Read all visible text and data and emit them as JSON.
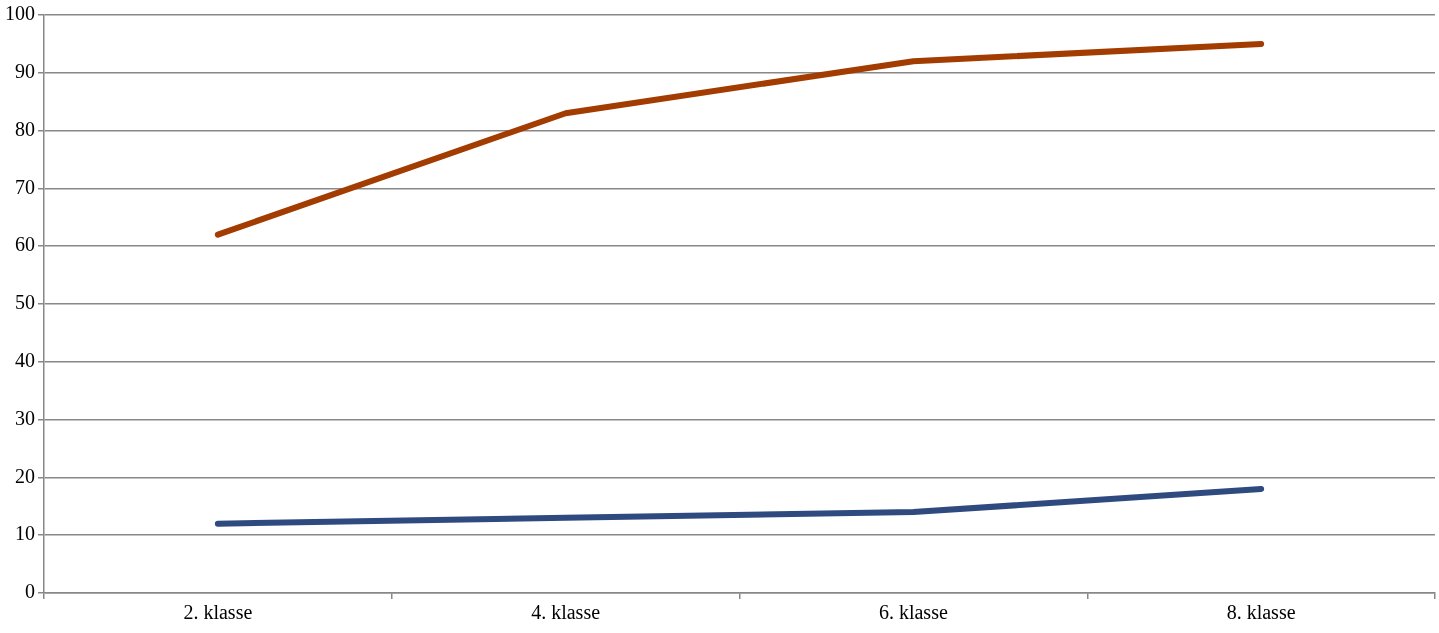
{
  "chart_data": {
    "type": "line",
    "categories": [
      "2. klasse",
      "4. klasse",
      "6. klasse",
      "8. klasse"
    ],
    "series": [
      {
        "color": "#a33c00",
        "values": [
          62,
          83,
          92,
          95
        ]
      },
      {
        "color": "#2e4a7e",
        "values": [
          12,
          13,
          14,
          18
        ]
      }
    ],
    "ylim": [
      0,
      100
    ],
    "yticks": [
      0,
      10,
      20,
      30,
      40,
      50,
      60,
      70,
      80,
      90,
      100
    ],
    "grid": "y",
    "legend": false,
    "marker": "none",
    "line_style": "solid"
  }
}
